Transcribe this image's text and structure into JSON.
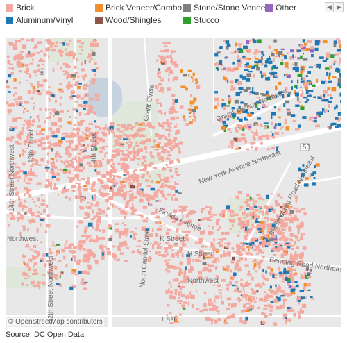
{
  "legend": {
    "items": [
      {
        "label": "Brick",
        "color": "#f4a9a0"
      },
      {
        "label": "Brick Veneer/Combo",
        "color": "#f28e2b"
      },
      {
        "label": "Stone/Stone Veneer",
        "color": "#7f7f7f"
      },
      {
        "label": "Other",
        "color": "#9467bd"
      },
      {
        "label": "Aluminum/Vinyl",
        "color": "#1f77b4"
      },
      {
        "label": "Wood/Shingles",
        "color": "#8c564b"
      },
      {
        "label": "Stucco",
        "color": "#2ca02c"
      }
    ],
    "pager_prev_icon": "chevron-left-icon",
    "pager_next_icon": "chevron-right-icon"
  },
  "map": {
    "street_labels": [
      "14th Street Northwest",
      "13th Street",
      "4th Street",
      "Grant Circle",
      "North Capitol Street",
      "Grand Avenue Northeast",
      "New York Avenue Northeast",
      "Florida Avenue",
      "Bladensburg Road Northeast",
      "K Street",
      "H Street",
      "Benning Road Northeast",
      "Northwest",
      "12th Street Northwest",
      "Northwest",
      "East",
      "50"
    ],
    "attribution": "© OpenStreetMap contributors"
  },
  "footer": {
    "source": "Source: DC Open Data"
  }
}
